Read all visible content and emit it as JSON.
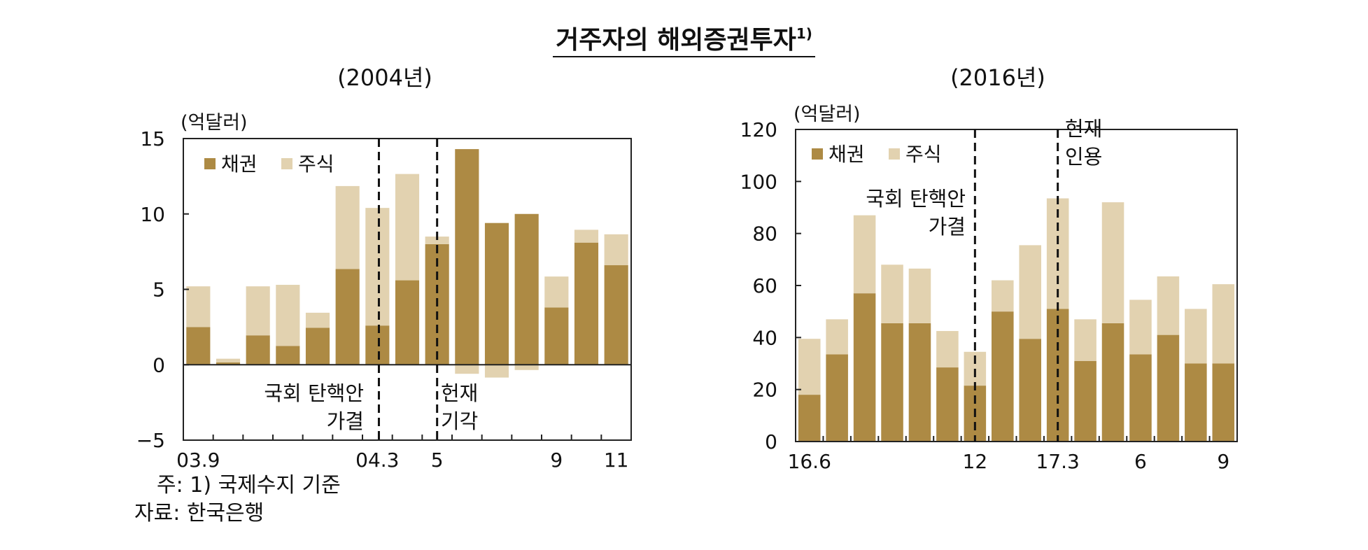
{
  "title": "거주자의 해외증권투자",
  "title_note": "1)",
  "footnote": "주:  1) 국제수지 기준",
  "source": "자료:  한국은행",
  "colors": {
    "bond": "#ad8a44",
    "stock": "#e2d2b0",
    "axis": "#222222"
  },
  "chart_data": [
    {
      "type": "bar",
      "subtitle": "(2004년)",
      "unit": "(억달러)",
      "stacked": true,
      "categories": [
        "03.9",
        "03.10",
        "03.11",
        "03.12",
        "04.1",
        "04.2",
        "04.3",
        "04.4",
        "04.5",
        "04.6",
        "04.7",
        "04.8",
        "04.9",
        "04.10",
        "04.11"
      ],
      "tick_labels": [
        "03.9",
        "",
        "",
        "",
        "",
        "",
        "04.3",
        "",
        "5",
        "",
        "",
        "",
        "9",
        "",
        "11"
      ],
      "series": [
        {
          "name": "채권",
          "values": [
            2.5,
            0.15,
            1.95,
            1.25,
            2.45,
            6.35,
            2.6,
            5.6,
            8.0,
            14.3,
            9.4,
            10.0,
            3.8,
            8.1,
            6.6
          ]
        },
        {
          "name": "주식",
          "values": [
            2.7,
            0.25,
            3.25,
            4.05,
            1.0,
            5.5,
            7.8,
            7.05,
            0.5,
            -0.6,
            -0.85,
            -0.35,
            2.05,
            0.85,
            2.05
          ]
        }
      ],
      "ylim": [
        -5,
        15
      ],
      "yticks": [
        "−5",
        "0",
        "5",
        "10",
        "15"
      ],
      "legend": "top-left",
      "annotations": [
        {
          "lines": [
            "국회 탄핵안",
            "가결"
          ],
          "x": "04.3"
        },
        {
          "lines": [
            "헌재",
            "기각"
          ],
          "x": "04.5"
        }
      ]
    },
    {
      "type": "bar",
      "subtitle": "(2016년)",
      "unit": "(억달러)",
      "stacked": true,
      "categories": [
        "16.6",
        "16.7",
        "16.8",
        "16.9",
        "16.10",
        "16.11",
        "16.12",
        "17.1",
        "17.2",
        "17.3",
        "17.4",
        "17.5",
        "17.6",
        "17.7",
        "17.8",
        "17.9"
      ],
      "tick_labels": [
        "16.6",
        "",
        "",
        "",
        "",
        "",
        "12",
        "",
        "",
        "17.3",
        "",
        "",
        "6",
        "",
        "",
        "9"
      ],
      "series": [
        {
          "name": "채권",
          "values": [
            18,
            33.5,
            57,
            45.5,
            45.5,
            28.5,
            21.5,
            50,
            39.5,
            51,
            31,
            45.5,
            33.5,
            41,
            30,
            30
          ]
        },
        {
          "name": "주식",
          "values": [
            21.5,
            13.5,
            30,
            22.5,
            21,
            14,
            13,
            12,
            36,
            42.5,
            16,
            46.5,
            21,
            22.5,
            21,
            30.5
          ]
        }
      ],
      "ylim": [
        0,
        120
      ],
      "yticks": [
        "0",
        "20",
        "40",
        "60",
        "80",
        "100",
        "120"
      ],
      "legend": "top-left",
      "annotations": [
        {
          "lines": [
            "국회 탄핵안",
            "가결"
          ],
          "x": "16.12"
        },
        {
          "lines": [
            "헌재",
            "인용"
          ],
          "x": "17.3"
        }
      ]
    }
  ]
}
